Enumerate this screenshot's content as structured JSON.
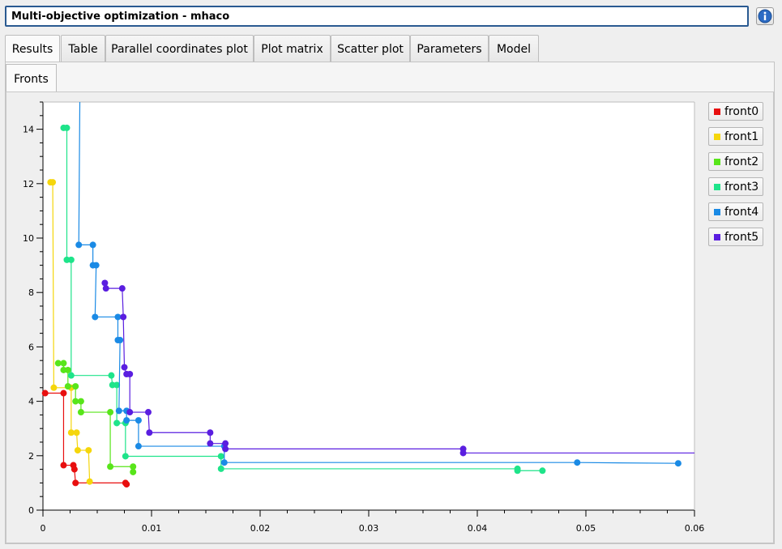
{
  "window": {
    "title": "Multi-objective optimization - mhaco",
    "info_icon": "info-icon"
  },
  "tabs": [
    {
      "label": "Results",
      "active": true
    },
    {
      "label": "Table"
    },
    {
      "label": "Parallel coordinates plot"
    },
    {
      "label": "Plot matrix"
    },
    {
      "label": "Scatter plot"
    },
    {
      "label": "Parameters"
    },
    {
      "label": "Model"
    }
  ],
  "subtabs": [
    {
      "label": "Fronts",
      "active": true
    }
  ],
  "chart_data": {
    "type": "scatter",
    "title": "",
    "xlabel": "",
    "ylabel": "",
    "xlim": [
      0,
      0.06
    ],
    "ylim": [
      0,
      15
    ],
    "x_ticks": [
      0,
      0.01,
      0.02,
      0.03,
      0.04,
      0.05,
      0.06
    ],
    "x_tick_labels": [
      "0",
      "0.01",
      "0.02",
      "0.03",
      "0.04",
      "0.05",
      "0.06"
    ],
    "y_ticks": [
      0,
      2,
      4,
      6,
      8,
      10,
      12,
      14
    ],
    "y_tick_labels": [
      "0",
      "2",
      "4",
      "6",
      "8",
      "10",
      "12",
      "14"
    ],
    "grid": false,
    "legend_position": "right",
    "series": [
      {
        "name": "front0",
        "color": "#e80f0f",
        "points": [
          [
            0.0002,
            4.3
          ],
          [
            0.0019,
            4.3
          ],
          [
            0.0019,
            1.65
          ],
          [
            0.0028,
            1.65
          ],
          [
            0.0029,
            1.5
          ],
          [
            0.003,
            1.0
          ],
          [
            0.0076,
            1.0
          ],
          [
            0.0077,
            0.95
          ]
        ]
      },
      {
        "name": "front1",
        "color": "#f5d60b",
        "points": [
          [
            0.0007,
            12.05
          ],
          [
            0.0009,
            12.05
          ],
          [
            0.001,
            4.5
          ],
          [
            0.0026,
            4.5
          ],
          [
            0.0026,
            2.85
          ],
          [
            0.0031,
            2.85
          ],
          [
            0.0032,
            2.2
          ],
          [
            0.0042,
            2.2
          ],
          [
            0.0043,
            1.05
          ]
        ]
      },
      {
        "name": "front2",
        "color": "#58e51a",
        "points": [
          [
            0.0014,
            5.4
          ],
          [
            0.0019,
            5.4
          ],
          [
            0.0019,
            5.15
          ],
          [
            0.0023,
            5.15
          ],
          [
            0.0023,
            4.55
          ],
          [
            0.003,
            4.55
          ],
          [
            0.003,
            4.0
          ],
          [
            0.0035,
            4.0
          ],
          [
            0.0035,
            3.6
          ],
          [
            0.0062,
            3.6
          ],
          [
            0.0062,
            1.6
          ],
          [
            0.0083,
            1.6
          ],
          [
            0.0083,
            1.4
          ]
        ]
      },
      {
        "name": "front3",
        "color": "#1ee48a",
        "points": [
          [
            0.0019,
            14.05
          ],
          [
            0.0022,
            14.05
          ],
          [
            0.0022,
            9.2
          ],
          [
            0.0026,
            9.2
          ],
          [
            0.0026,
            4.95
          ],
          [
            0.0063,
            4.95
          ],
          [
            0.0064,
            4.6
          ],
          [
            0.0068,
            4.6
          ],
          [
            0.0068,
            3.2
          ],
          [
            0.0076,
            3.2
          ],
          [
            0.0076,
            1.98
          ],
          [
            0.0164,
            1.98
          ],
          [
            0.0164,
            1.52
          ],
          [
            0.0437,
            1.52
          ],
          [
            0.0437,
            1.45
          ],
          [
            0.046,
            1.45
          ]
        ]
      },
      {
        "name": "front4",
        "color": "#1a8ae5",
        "points": [
          [
            0.0034,
            15.2
          ],
          [
            0.0033,
            9.75
          ],
          [
            0.0046,
            9.75
          ],
          [
            0.0046,
            9.0
          ],
          [
            0.0049,
            9.0
          ],
          [
            0.0048,
            7.1
          ],
          [
            0.0069,
            7.1
          ],
          [
            0.0069,
            6.25
          ],
          [
            0.0071,
            6.25
          ],
          [
            0.007,
            3.65
          ],
          [
            0.0077,
            3.65
          ],
          [
            0.0077,
            3.3
          ],
          [
            0.0088,
            3.3
          ],
          [
            0.0088,
            2.35
          ],
          [
            0.0167,
            2.35
          ],
          [
            0.0167,
            1.75
          ],
          [
            0.0492,
            1.75
          ],
          [
            0.0585,
            1.72
          ]
        ]
      },
      {
        "name": "front5",
        "color": "#5a1ee0",
        "points": [
          [
            0.0057,
            8.35
          ],
          [
            0.0058,
            8.15
          ],
          [
            0.0073,
            8.15
          ],
          [
            0.0074,
            7.1
          ],
          [
            0.0075,
            5.25
          ],
          [
            0.0077,
            5.0
          ],
          [
            0.008,
            5.0
          ],
          [
            0.008,
            3.6
          ],
          [
            0.0097,
            3.6
          ],
          [
            0.0098,
            2.85
          ],
          [
            0.0154,
            2.85
          ],
          [
            0.0154,
            2.45
          ],
          [
            0.0168,
            2.45
          ],
          [
            0.0168,
            2.25
          ],
          [
            0.0387,
            2.25
          ],
          [
            0.0387,
            2.1
          ],
          [
            0.06,
            2.1
          ]
        ]
      }
    ]
  }
}
